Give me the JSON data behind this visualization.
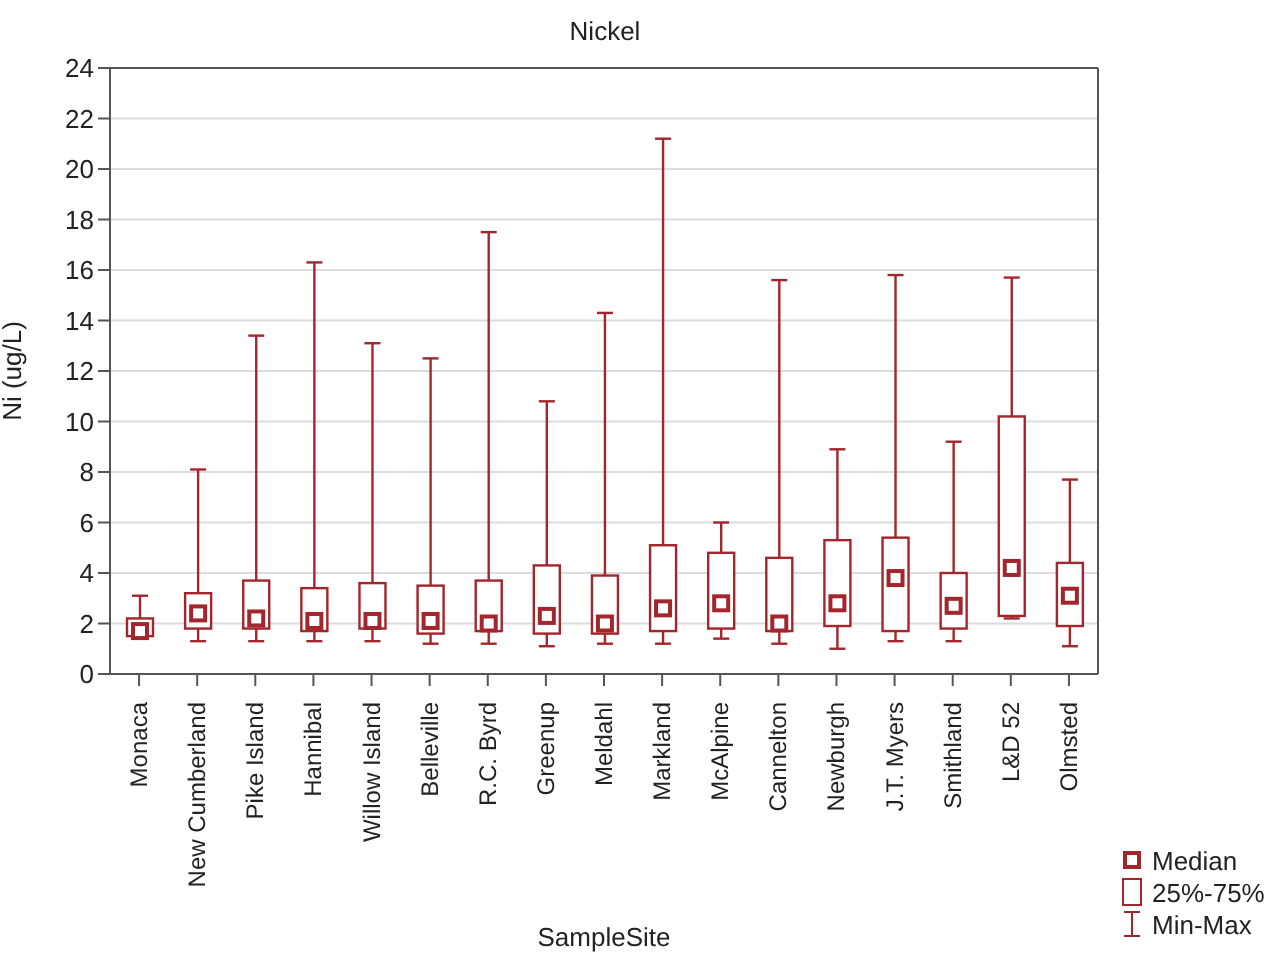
{
  "chart_data": {
    "type": "box",
    "title": "Nickel",
    "xlabel": "SampleSite",
    "ylabel": "Ni (ug/L)",
    "categories": [
      "Monaca",
      "New Cumberland",
      "Pike Island",
      "Hannibal",
      "Willow Island",
      "Belleville",
      "R.C. Byrd",
      "Greenup",
      "Meldahl",
      "Markland",
      "McAlpine",
      "Cannelton",
      "Newburgh",
      "J.T. Myers",
      "Smithland",
      "L&D 52",
      "Olmsted"
    ],
    "boxes": [
      {
        "low": 1.4,
        "q1": 1.5,
        "median": 1.7,
        "q3": 2.2,
        "high": 3.1
      },
      {
        "low": 1.3,
        "q1": 1.8,
        "median": 2.4,
        "q3": 3.2,
        "high": 8.1
      },
      {
        "low": 1.3,
        "q1": 1.8,
        "median": 2.2,
        "q3": 3.7,
        "high": 13.4
      },
      {
        "low": 1.3,
        "q1": 1.7,
        "median": 2.1,
        "q3": 3.4,
        "high": 16.3
      },
      {
        "low": 1.3,
        "q1": 1.8,
        "median": 2.1,
        "q3": 3.6,
        "high": 13.1
      },
      {
        "low": 1.2,
        "q1": 1.6,
        "median": 2.1,
        "q3": 3.5,
        "high": 12.5
      },
      {
        "low": 1.2,
        "q1": 1.7,
        "median": 2.0,
        "q3": 3.7,
        "high": 17.5
      },
      {
        "low": 1.1,
        "q1": 1.6,
        "median": 2.3,
        "q3": 4.3,
        "high": 10.8
      },
      {
        "low": 1.2,
        "q1": 1.6,
        "median": 2.0,
        "q3": 3.9,
        "high": 14.3
      },
      {
        "low": 1.2,
        "q1": 1.7,
        "median": 2.6,
        "q3": 5.1,
        "high": 21.2
      },
      {
        "low": 1.4,
        "q1": 1.8,
        "median": 2.8,
        "q3": 4.8,
        "high": 6.0
      },
      {
        "low": 1.2,
        "q1": 1.7,
        "median": 2.0,
        "q3": 4.6,
        "high": 15.6
      },
      {
        "low": 1.0,
        "q1": 1.9,
        "median": 2.8,
        "q3": 5.3,
        "high": 8.9
      },
      {
        "low": 1.3,
        "q1": 1.7,
        "median": 3.8,
        "q3": 5.4,
        "high": 15.8
      },
      {
        "low": 1.3,
        "q1": 1.8,
        "median": 2.7,
        "q3": 4.0,
        "high": 9.2
      },
      {
        "low": 2.2,
        "q1": 2.3,
        "median": 4.2,
        "q3": 10.2,
        "high": 15.7
      },
      {
        "low": 1.1,
        "q1": 1.9,
        "median": 3.1,
        "q3": 4.4,
        "high": 7.7
      }
    ],
    "color": "#a3262c",
    "ylim": [
      0,
      24
    ],
    "yticks": [
      0,
      2,
      4,
      6,
      8,
      10,
      12,
      14,
      16,
      18,
      20,
      22,
      24
    ],
    "grid": "y",
    "annotations": [
      "Median",
      "25%-75%",
      "Min-Max"
    ]
  }
}
